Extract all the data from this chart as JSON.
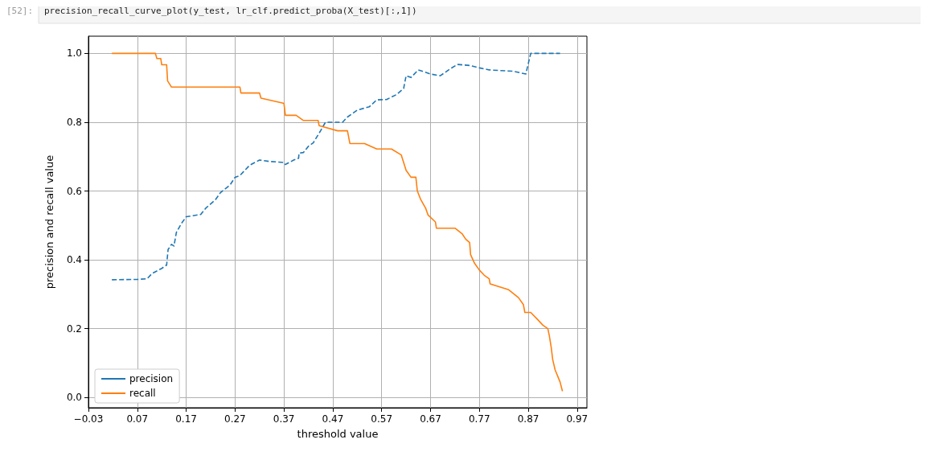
{
  "chart_data": {
    "type": "line",
    "xlabel": "threshold value",
    "ylabel": "precision and recall value",
    "annotations": [
      "[52]:",
      "precision_recall_curve_plot(y_test, lr_clf.predict_proba(X_test)[:,1])"
    ],
    "xlim": [
      -0.03,
      0.99
    ],
    "ylim": [
      -0.03,
      1.05
    ],
    "xticks": [
      {
        "value": -0.03,
        "label": "−0.03"
      },
      0.07,
      0.17,
      0.27,
      0.37,
      0.47,
      0.57,
      0.67,
      0.77,
      0.87,
      0.97
    ],
    "yticks": [
      {
        "value": 0,
        "label": "0.0"
      },
      0.2,
      0.4,
      0.6,
      0.8,
      {
        "value": 1,
        "label": "1.0"
      }
    ],
    "grid": true,
    "legend": "bottom left",
    "series": [
      {
        "name": "precision",
        "color": "#1f77b4",
        "line_style": "dashed",
        "x": [
          0.018,
          0.07,
          0.09,
          0.1,
          0.12,
          0.13,
          0.133,
          0.14,
          0.145,
          0.15,
          0.16,
          0.17,
          0.2,
          0.21,
          0.23,
          0.24,
          0.26,
          0.27,
          0.28,
          0.3,
          0.32,
          0.34,
          0.37,
          0.373,
          0.39,
          0.4,
          0.401,
          0.41,
          0.42,
          0.43,
          0.445,
          0.455,
          0.47,
          0.49,
          0.5,
          0.52,
          0.545,
          0.56,
          0.58,
          0.6,
          0.615,
          0.62,
          0.63,
          0.645,
          0.67,
          0.69,
          0.71,
          0.725,
          0.75,
          0.77,
          0.79,
          0.84,
          0.865,
          0.875,
          0.935
        ],
        "values": [
          0.342,
          0.343,
          0.345,
          0.36,
          0.375,
          0.385,
          0.43,
          0.445,
          0.44,
          0.48,
          0.505,
          0.525,
          0.532,
          0.55,
          0.575,
          0.595,
          0.618,
          0.64,
          0.645,
          0.675,
          0.69,
          0.686,
          0.683,
          0.677,
          0.69,
          0.695,
          0.71,
          0.712,
          0.73,
          0.74,
          0.775,
          0.8,
          0.8,
          0.8,
          0.815,
          0.835,
          0.845,
          0.865,
          0.866,
          0.88,
          0.898,
          0.935,
          0.93,
          0.952,
          0.94,
          0.935,
          0.955,
          0.968,
          0.965,
          0.958,
          0.952,
          0.948,
          0.94,
          1.0,
          1.0
        ]
      },
      {
        "name": "recall",
        "color": "#ff7f0e",
        "line_style": "solid",
        "x": [
          0.018,
          0.107,
          0.11,
          0.118,
          0.12,
          0.13,
          0.132,
          0.14,
          0.28,
          0.282,
          0.32,
          0.323,
          0.37,
          0.373,
          0.395,
          0.41,
          0.44,
          0.442,
          0.48,
          0.5,
          0.505,
          0.535,
          0.56,
          0.59,
          0.61,
          0.62,
          0.63,
          0.64,
          0.643,
          0.65,
          0.66,
          0.665,
          0.68,
          0.682,
          0.72,
          0.735,
          0.742,
          0.75,
          0.752,
          0.76,
          0.77,
          0.78,
          0.79,
          0.792,
          0.83,
          0.85,
          0.86,
          0.863,
          0.875,
          0.89,
          0.9,
          0.91,
          0.913,
          0.917,
          0.92,
          0.925,
          0.935,
          0.94
        ],
        "values": [
          1.0,
          1.0,
          0.985,
          0.985,
          0.967,
          0.967,
          0.92,
          0.902,
          0.902,
          0.885,
          0.885,
          0.87,
          0.855,
          0.82,
          0.82,
          0.805,
          0.805,
          0.79,
          0.775,
          0.775,
          0.738,
          0.738,
          0.722,
          0.722,
          0.705,
          0.66,
          0.64,
          0.64,
          0.6,
          0.575,
          0.55,
          0.53,
          0.51,
          0.492,
          0.492,
          0.475,
          0.46,
          0.45,
          0.415,
          0.39,
          0.37,
          0.355,
          0.345,
          0.33,
          0.313,
          0.29,
          0.27,
          0.247,
          0.247,
          0.225,
          0.21,
          0.2,
          0.18,
          0.145,
          0.11,
          0.08,
          0.045,
          0.018
        ]
      }
    ]
  }
}
